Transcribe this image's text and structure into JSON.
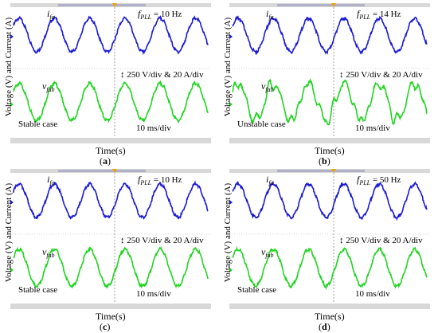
{
  "figure": {
    "y_axis_label": "Voltage (V) and Current (A)",
    "x_axis_label": "Time(s)",
    "scale_label": "250 V/div & 20 A/div",
    "time_div_label": "10 ms/div",
    "current_symbol": "i",
    "current_sub": "fa",
    "voltage_symbol": "v",
    "voltage_sub": "fab",
    "fpll_symbol": "f",
    "fpll_sub": "PLL",
    "colors": {
      "current": "#1a1ad6",
      "voltage": "#22d422",
      "cursor": "#888888"
    }
  },
  "panels": [
    {
      "id": "a",
      "caption": "a",
      "fpll_value": "= 10 Hz",
      "case_label": "Stable case"
    },
    {
      "id": "b",
      "caption": "b",
      "fpll_value": "= 14 Hz",
      "case_label": "Unstable case"
    },
    {
      "id": "c",
      "caption": "c",
      "fpll_value": "= 10 Hz",
      "case_label": "Stable case"
    },
    {
      "id": "d",
      "caption": "d",
      "fpll_value": "= 50 Hz",
      "case_label": "Stable case"
    }
  ],
  "chart_data": [
    {
      "type": "line",
      "panel": "a",
      "x_unit": "ms",
      "series": [
        {
          "name": "i_fa",
          "waveform": "sine",
          "period_ms": 20,
          "cycles_shown": 5.5,
          "amplitude_div": 1.0,
          "offset_div": 2.0
        },
        {
          "name": "v_fab",
          "waveform": "sine",
          "period_ms": 20,
          "cycles_shown": 5.5,
          "amplitude_div": 1.1,
          "offset_div": -2.0
        }
      ]
    },
    {
      "type": "line",
      "panel": "b",
      "x_unit": "ms",
      "series": [
        {
          "name": "i_fa",
          "waveform": "sine",
          "period_ms": 20,
          "cycles_shown": 5.5,
          "amplitude_div": 1.0,
          "offset_div": 2.0
        },
        {
          "name": "v_fab",
          "waveform": "distorted sine",
          "period_ms": 20,
          "cycles_shown": 5.5,
          "amplitude_div": 1.1,
          "offset_div": -2.0
        }
      ]
    },
    {
      "type": "line",
      "panel": "c",
      "x_unit": "ms",
      "series": [
        {
          "name": "i_fa",
          "waveform": "sine",
          "period_ms": 20,
          "cycles_shown": 5.5,
          "amplitude_div": 1.0,
          "offset_div": 2.0
        },
        {
          "name": "v_fab",
          "waveform": "sine",
          "period_ms": 20,
          "cycles_shown": 5.5,
          "amplitude_div": 1.1,
          "offset_div": -2.0
        }
      ]
    },
    {
      "type": "line",
      "panel": "d",
      "x_unit": "ms",
      "series": [
        {
          "name": "i_fa",
          "waveform": "sine",
          "period_ms": 20,
          "cycles_shown": 5.5,
          "amplitude_div": 1.0,
          "offset_div": 2.0
        },
        {
          "name": "v_fab",
          "waveform": "sine",
          "period_ms": 20,
          "cycles_shown": 5.5,
          "amplitude_div": 1.1,
          "offset_div": -2.0
        }
      ]
    }
  ]
}
